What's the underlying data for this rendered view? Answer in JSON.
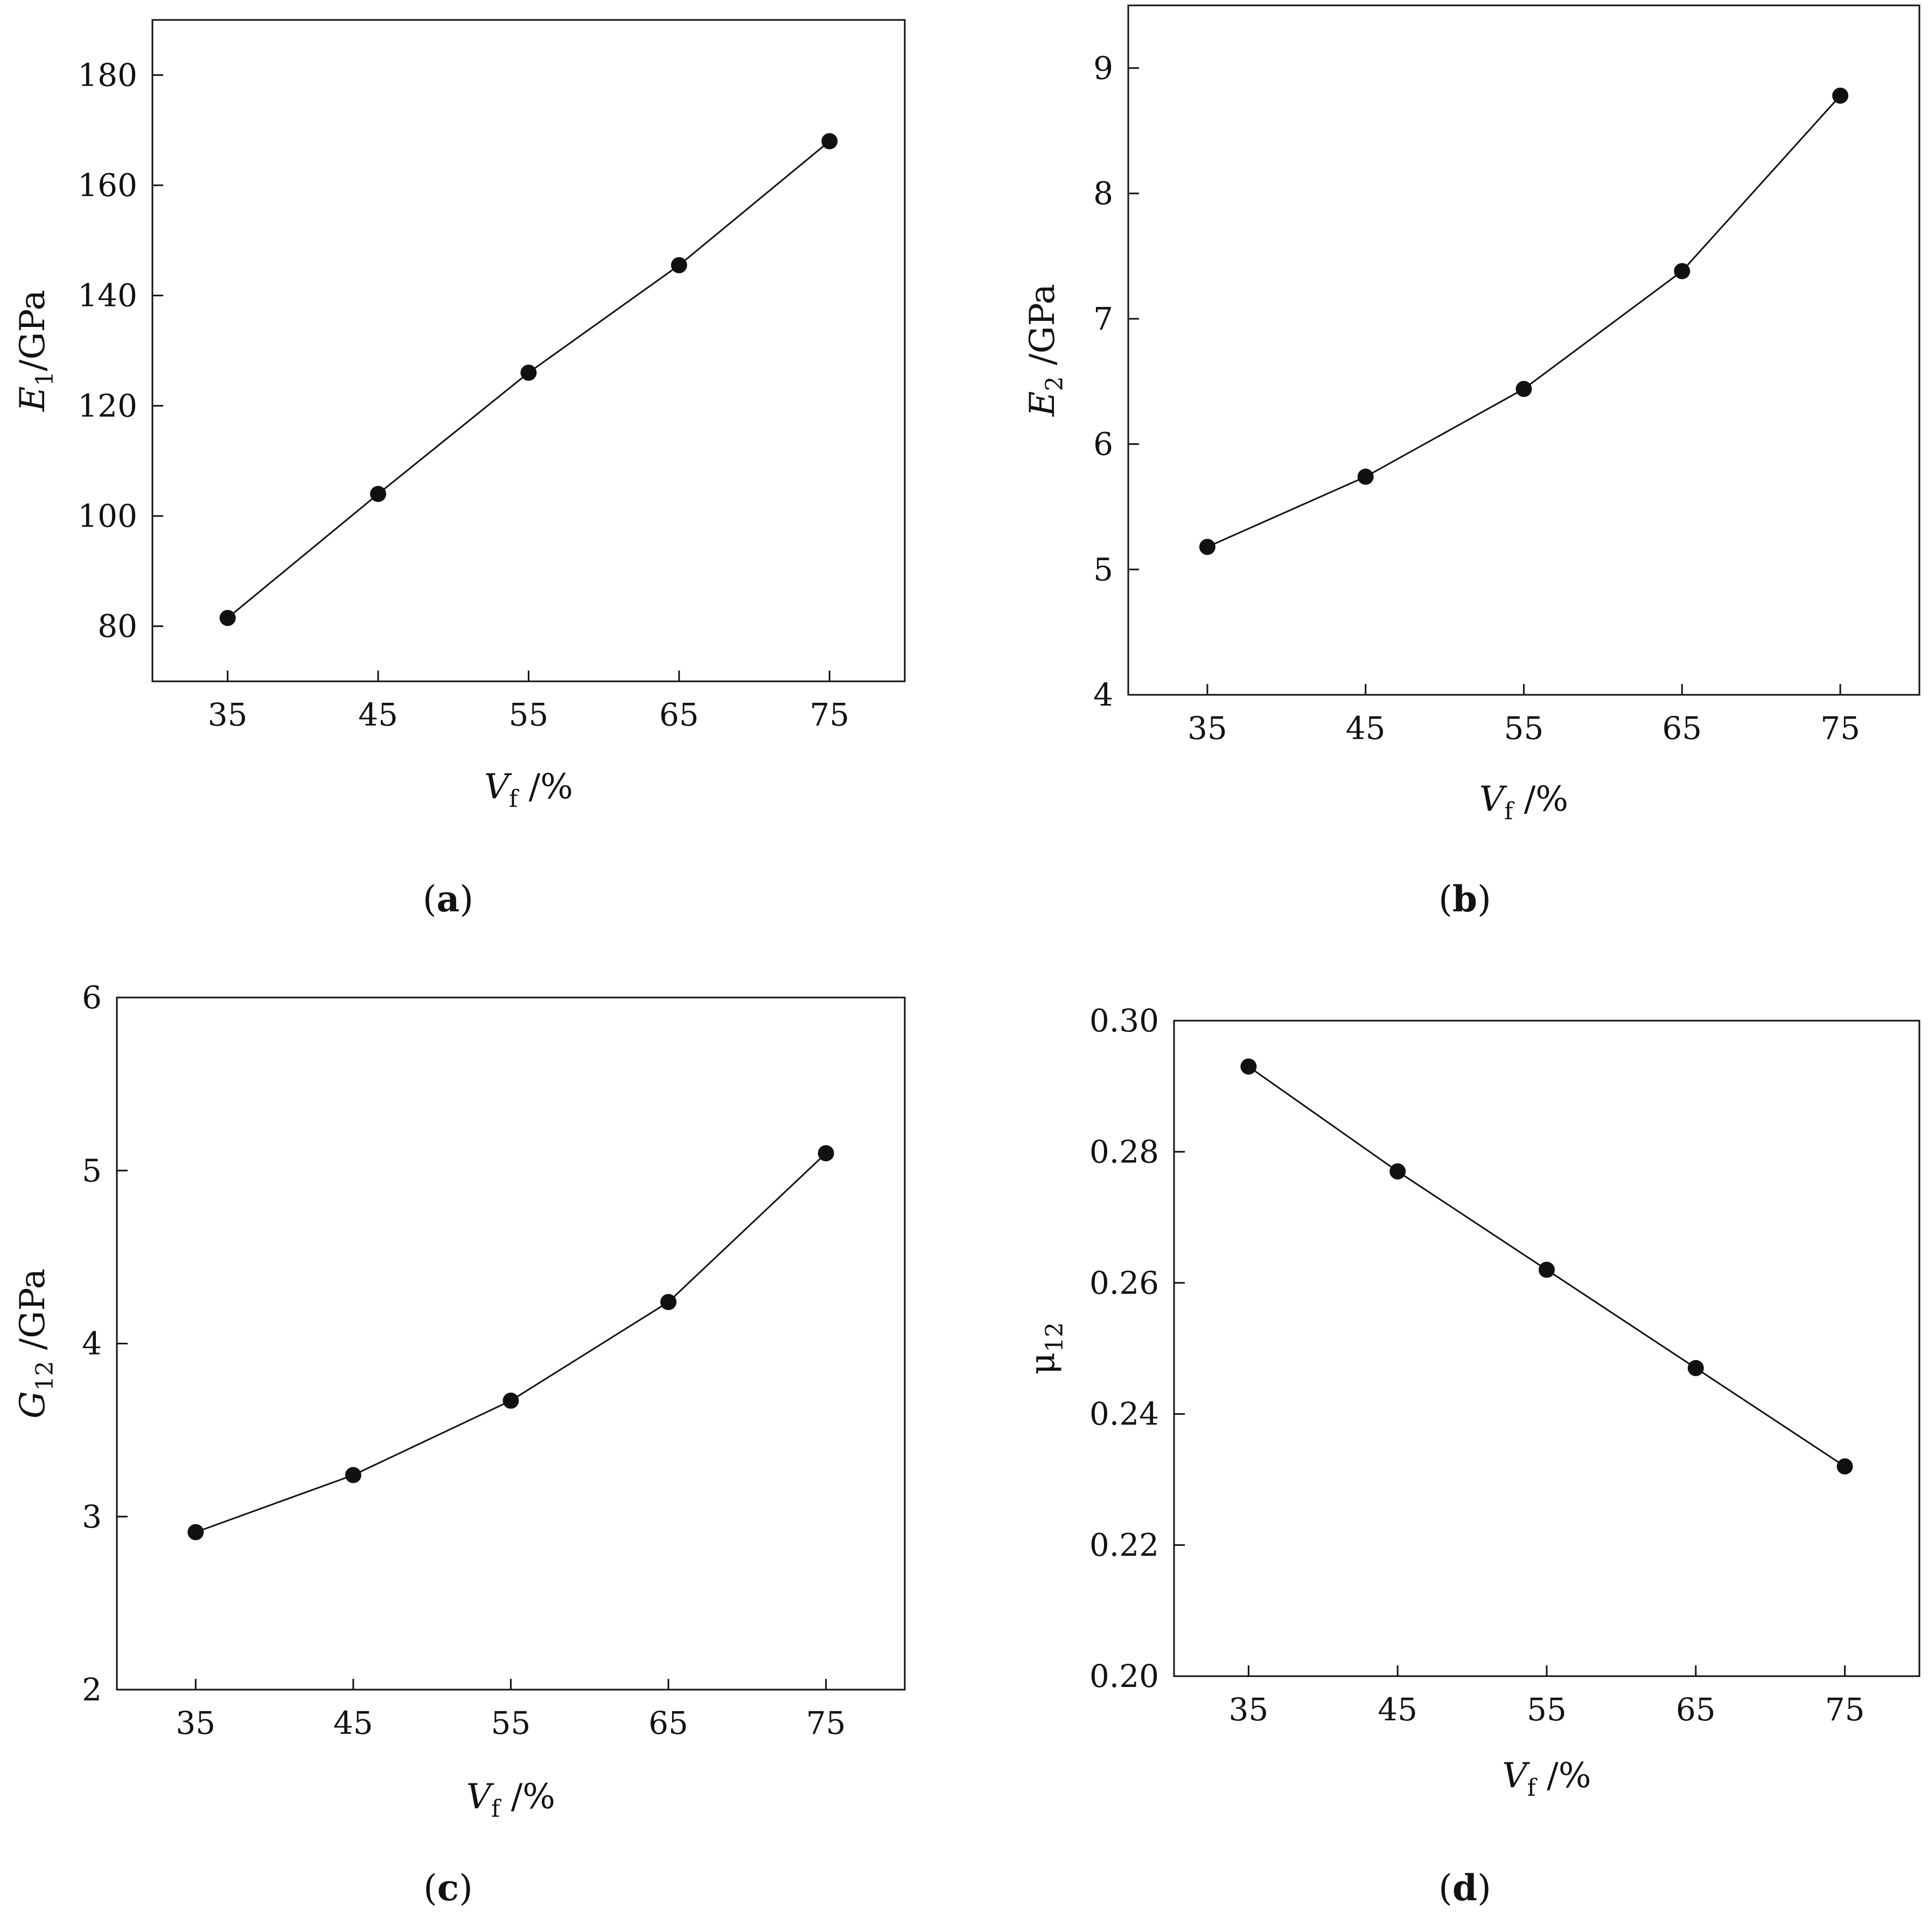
{
  "figure": {
    "background": "#ffffff",
    "line_color": "#111111",
    "marker_color": "#111111"
  },
  "chart_data": [
    {
      "id": "a",
      "panel_label": "a",
      "type": "line",
      "markers": "filled-circle",
      "xlabel": {
        "main": "V",
        "sub": "f",
        "unit": " /%"
      },
      "ylabel": {
        "main": "E",
        "sub": "1",
        "unit": "/GPa"
      },
      "xlim": [
        30,
        80
      ],
      "ylim": [
        70,
        190
      ],
      "x_ticks": [
        35,
        45,
        55,
        65,
        75
      ],
      "x_tick_labels": [
        "35",
        "45",
        "55",
        "65",
        "75"
      ],
      "y_ticks": [
        80,
        100,
        120,
        140,
        160,
        180
      ],
      "y_tick_labels": [
        "80",
        "100",
        "120",
        "140",
        "160",
        "180"
      ],
      "grid": false,
      "x": [
        35,
        45,
        55,
        65,
        75
      ],
      "y": [
        81.5,
        104,
        126,
        145.5,
        168
      ]
    },
    {
      "id": "b",
      "panel_label": "b",
      "type": "line",
      "markers": "filled-circle",
      "xlabel": {
        "main": "V",
        "sub": "f",
        "unit": " /%"
      },
      "ylabel": {
        "main": "E",
        "sub": "2",
        "unit": " /GPa"
      },
      "xlim": [
        30,
        80
      ],
      "ylim": [
        4,
        9.5
      ],
      "x_ticks": [
        35,
        45,
        55,
        65,
        75
      ],
      "x_tick_labels": [
        "35",
        "45",
        "55",
        "65",
        "75"
      ],
      "y_ticks": [
        4,
        5,
        6,
        7,
        8,
        9
      ],
      "y_tick_labels": [
        "4",
        "5",
        "6",
        "7",
        "8",
        "9"
      ],
      "grid": false,
      "x": [
        35,
        45,
        55,
        65,
        75
      ],
      "y": [
        5.18,
        5.74,
        6.44,
        7.38,
        8.78
      ]
    },
    {
      "id": "c",
      "panel_label": "c",
      "type": "line",
      "markers": "filled-circle",
      "xlabel": {
        "main": "V",
        "sub": "f",
        "unit": " /%"
      },
      "ylabel": {
        "main": "G",
        "sub": "12",
        "unit": " /GPa"
      },
      "xlim": [
        30,
        80
      ],
      "ylim": [
        2,
        6
      ],
      "x_ticks": [
        35,
        45,
        55,
        65,
        75
      ],
      "x_tick_labels": [
        "35",
        "45",
        "55",
        "65",
        "75"
      ],
      "y_ticks": [
        2,
        3,
        4,
        5,
        6
      ],
      "y_tick_labels": [
        "2",
        "3",
        "4",
        "5",
        "6"
      ],
      "grid": false,
      "x": [
        35,
        45,
        55,
        65,
        75
      ],
      "y": [
        2.91,
        3.24,
        3.67,
        4.24,
        5.1
      ]
    },
    {
      "id": "d",
      "panel_label": "d",
      "type": "line",
      "markers": "filled-circle",
      "xlabel": {
        "main": "V",
        "sub": "f",
        "unit": " /%"
      },
      "ylabel": {
        "main": "μ",
        "sub": "12",
        "unit": ""
      },
      "xlim": [
        30,
        80
      ],
      "ylim": [
        0.2,
        0.3
      ],
      "x_ticks": [
        35,
        45,
        55,
        65,
        75
      ],
      "x_tick_labels": [
        "35",
        "45",
        "55",
        "65",
        "75"
      ],
      "y_ticks": [
        0.2,
        0.22,
        0.24,
        0.26,
        0.28,
        0.3
      ],
      "y_tick_labels": [
        "0.20",
        "0.22",
        "0.24",
        "0.26",
        "0.28",
        "0.30"
      ],
      "grid": false,
      "x": [
        35,
        45,
        55,
        65,
        75
      ],
      "y": [
        0.293,
        0.277,
        0.262,
        0.247,
        0.232
      ]
    }
  ]
}
